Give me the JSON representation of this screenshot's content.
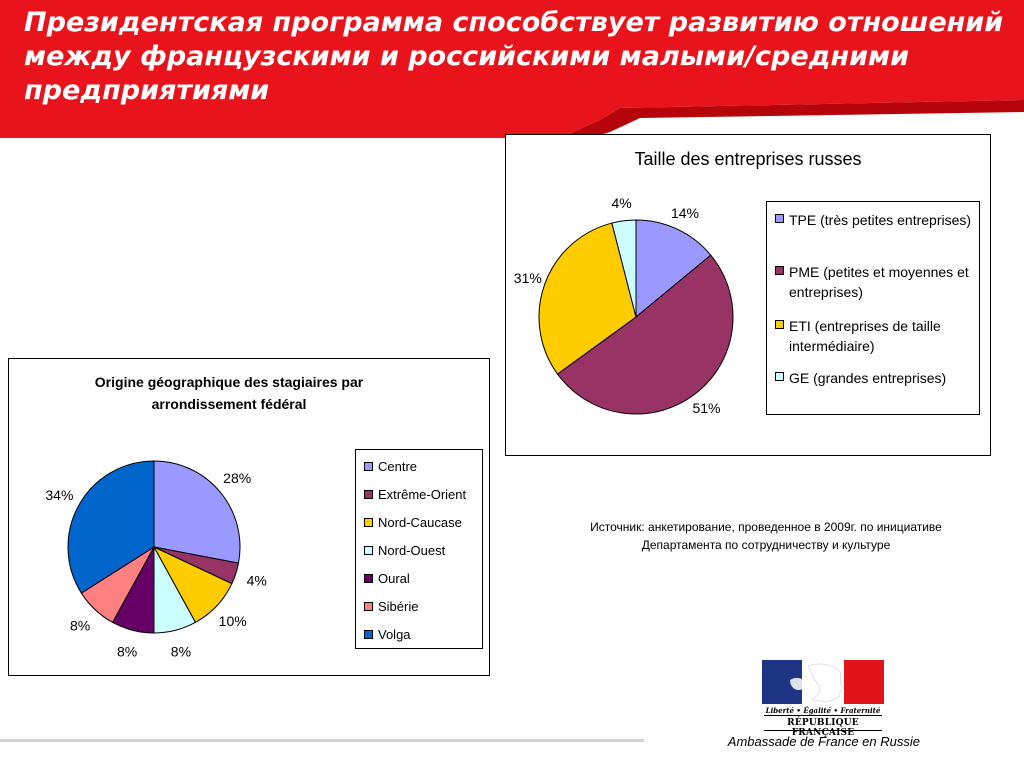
{
  "header": {
    "title": "Президентская программа способствует развитию отношений между французскими и российскими малыми/средними предприятиями"
  },
  "colors": {
    "header_red": "#e8131b",
    "header_dark_red": "#b5050b"
  },
  "chart_data": [
    {
      "type": "pie",
      "title": "Taille des entreprises russes",
      "labels": [
        "TPE (très petites entreprises)",
        "PME (petites et moyennes et entreprises)",
        "ETI (entreprises de taille intermédiaire)",
        "GE (grandes entreprises)"
      ],
      "values": [
        14,
        51,
        31,
        4
      ],
      "value_labels": [
        "14%",
        "51%",
        "31%",
        "4%"
      ],
      "colors": [
        "#9999ff",
        "#993366",
        "#ffcc00",
        "#ccffff"
      ],
      "legend": "right"
    },
    {
      "type": "pie",
      "title": "Origine géographique des stagiaires par arrondissement fédéral",
      "labels": [
        "Centre",
        "Extrême-Orient",
        "Nord-Caucase",
        "Nord-Ouest",
        "Oural",
        "Sibérie",
        "Volga"
      ],
      "values": [
        28,
        4,
        10,
        8,
        8,
        8,
        34
      ],
      "value_labels": [
        "28%",
        "4%",
        "10%",
        "8%",
        "8%",
        "8%",
        "34%"
      ],
      "colors": [
        "#9999ff",
        "#993366",
        "#ffcc00",
        "#ccffff",
        "#660066",
        "#ff8080",
        "#0066cc"
      ],
      "legend": "right"
    }
  ],
  "source_note": {
    "line1": "Источник: анкетирование, проведенное в 2009г. по инициативе",
    "line2": "Департамента по сотрудничеству и культуре"
  },
  "logo": {
    "motto": "Liberté • Égalité • Fraternité",
    "republic": "RÉPUBLIQUE FRANÇAISE"
  },
  "footer": {
    "embassy": "Ambassade de France en Russie"
  }
}
